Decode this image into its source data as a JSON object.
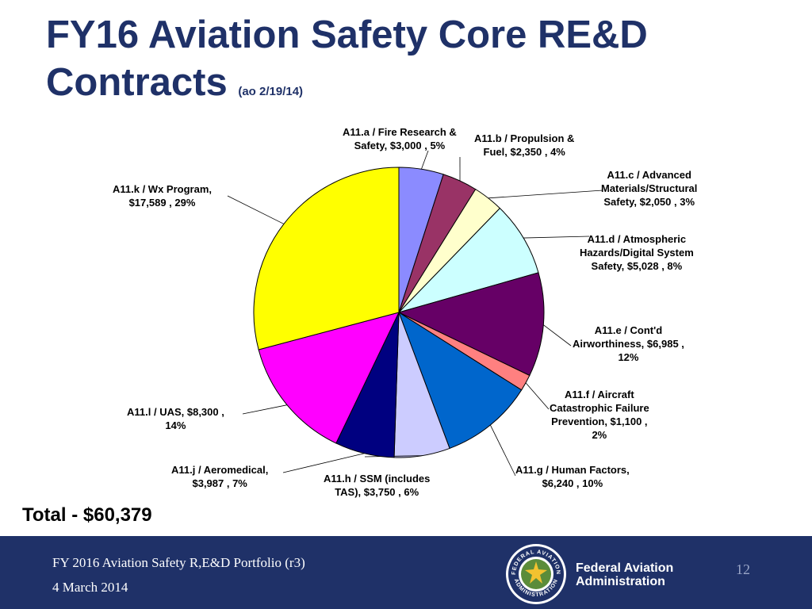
{
  "header": {
    "title_line1": "FY16 Aviation Safety Core RE&D",
    "title_line2": "Contracts",
    "subtitle": "(ao 2/19/14)"
  },
  "chart_data": {
    "type": "pie",
    "title": "FY16 Aviation Safety Core RE&D Contracts",
    "units": "$K",
    "slices": [
      {
        "label_line1": "A11.a / Fire Research &",
        "label_line2": "Safety,  $3,000 , 5%",
        "value": 3000,
        "percent": "5%",
        "color": "#8b8bff"
      },
      {
        "label_line1": "A11.b / Propulsion &",
        "label_line2": "Fuel,  $2,350 , 4%",
        "value": 2350,
        "percent": "4%",
        "color": "#993366"
      },
      {
        "label_line1": "A11.c / Advanced",
        "label_line2": "Materials/Structural",
        "label_line3": "Safety,  $2,050 , 3%",
        "value": 2050,
        "percent": "3%",
        "color": "#ffffcc"
      },
      {
        "label_line1": "A11.d / Atmospheric",
        "label_line2": "Hazards/Digital System",
        "label_line3": "Safety,  $5,028 , 8%",
        "value": 5028,
        "percent": "8%",
        "color": "#ccffff"
      },
      {
        "label_line1": "A11.e / Cont'd",
        "label_line2": "Airworthiness,  $6,985 ,",
        "label_line3": "12%",
        "value": 6985,
        "percent": "12%",
        "color": "#660066"
      },
      {
        "label_line1": "A11.f / Aircraft",
        "label_line2": "Catastrophic Failure",
        "label_line3": "Prevention,  $1,100 ,",
        "label_line4": "2%",
        "value": 1100,
        "percent": "2%",
        "color": "#ff8080"
      },
      {
        "label_line1": "A11.g / Human Factors,",
        "label_line2": "$6,240 , 10%",
        "value": 6240,
        "percent": "10%",
        "color": "#0066cc"
      },
      {
        "label_line1": "A11.h / SSM (includes",
        "label_line2": "TAS),  $3,750 , 6%",
        "value": 3750,
        "percent": "6%",
        "color": "#ccccff"
      },
      {
        "label_line1": "A11.j / Aeromedical,",
        "label_line2": "$3,987 , 7%",
        "value": 3987,
        "percent": "7%",
        "color": "#000080"
      },
      {
        "label_line1": "A11.l / UAS,  $8,300 ,",
        "label_line2": "14%",
        "value": 8300,
        "percent": "14%",
        "color": "#ff00ff"
      },
      {
        "label_line1": "A11.k / Wx Program,",
        "label_line2": "$17,589 , 29%",
        "value": 17589,
        "percent": "29%",
        "color": "#ffff00"
      }
    ]
  },
  "total": "Total - $60,379",
  "footer": {
    "portfolio": "FY 2016 Aviation Safety R,E&D Portfolio (r3)",
    "date": "4 March 2014",
    "org_line1": "Federal Aviation",
    "org_line2": "Administration",
    "page": "12",
    "seal_text_top": "FEDERAL AVIATION",
    "seal_text_bottom": "ADMINISTRATION"
  }
}
